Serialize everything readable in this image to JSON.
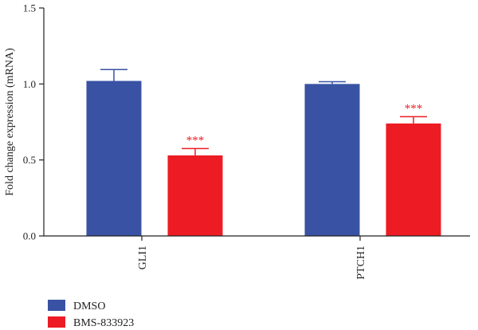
{
  "chart_data": {
    "type": "bar",
    "ylabel": "Fold change expression (mRNA)",
    "ylim": [
      0,
      1.5
    ],
    "yticks": [
      "0.0",
      "0.5",
      "1.0",
      "1.5"
    ],
    "categories": [
      "GLI1",
      "PTCH1"
    ],
    "series": [
      {
        "name": "DMSO",
        "color": "#3952a4",
        "values": [
          1.02,
          1.0
        ],
        "errors": [
          0.075,
          0.015
        ],
        "annotations": [
          "",
          ""
        ]
      },
      {
        "name": "BMS-833923",
        "color": "#ed1c24",
        "values": [
          0.53,
          0.74
        ],
        "errors": [
          0.045,
          0.045
        ],
        "annotations": [
          "***",
          "***"
        ]
      }
    ],
    "legend_position": "bottom-left",
    "grid": false
  }
}
